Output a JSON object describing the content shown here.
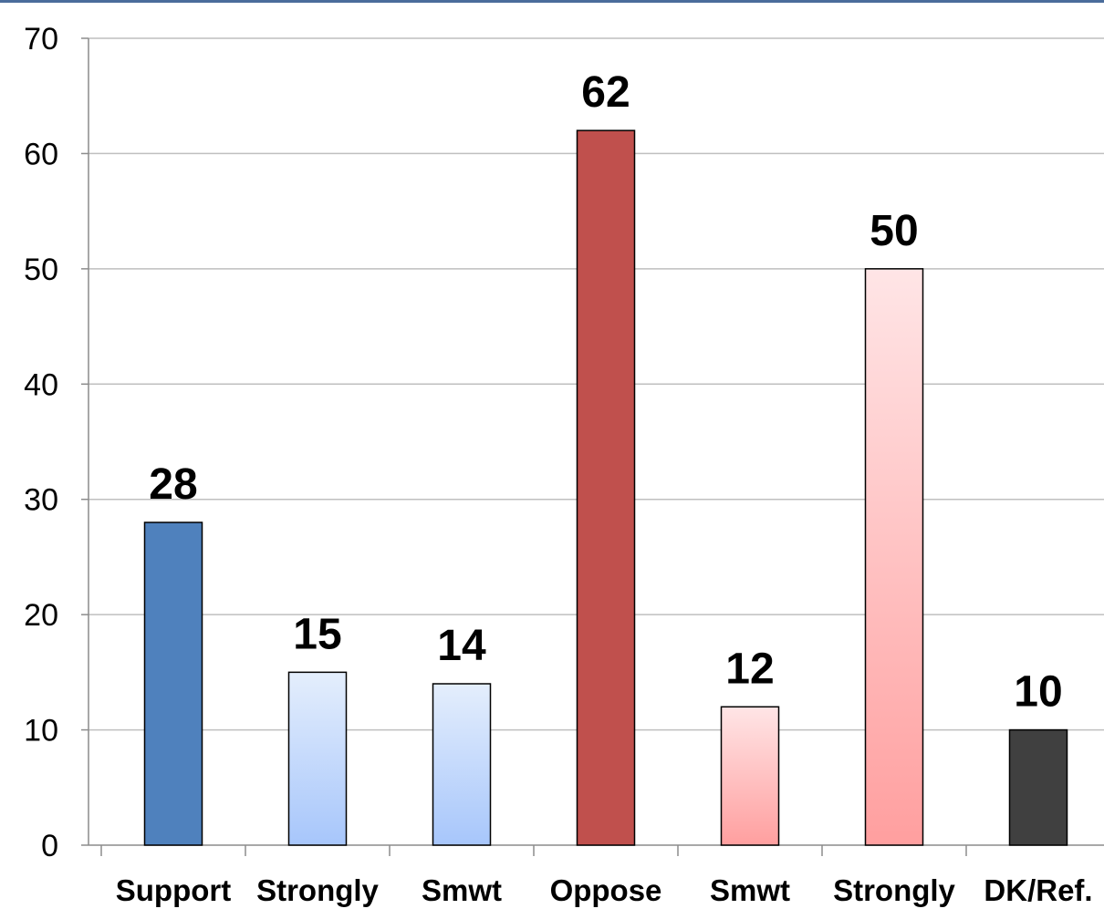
{
  "chart_data": {
    "type": "bar",
    "categories": [
      "Support",
      "Strongly",
      "Smwt",
      "Oppose",
      "Smwt",
      "Strongly",
      "DK/Ref."
    ],
    "values": [
      28,
      15,
      14,
      62,
      12,
      50,
      10
    ],
    "data_labels": [
      "28",
      "15",
      "14",
      "62",
      "12",
      "50",
      "10"
    ],
    "yticks": [
      "0",
      "10",
      "20",
      "30",
      "40",
      "50",
      "60",
      "70"
    ],
    "ylim": [
      0,
      70
    ],
    "grid": true,
    "legend": "none",
    "title": "",
    "xlabel": "",
    "ylabel": "",
    "colors": {
      "support": "#4f81bd",
      "support_light_top": "#e4eefc",
      "support_light_bottom": "#a7c6fb",
      "oppose": "#c0504d",
      "oppose_light_top": "#ffe5e6",
      "oppose_light_bottom": "#ff9f9f",
      "dk": "#404040",
      "grid": "#bfbfbf"
    }
  }
}
